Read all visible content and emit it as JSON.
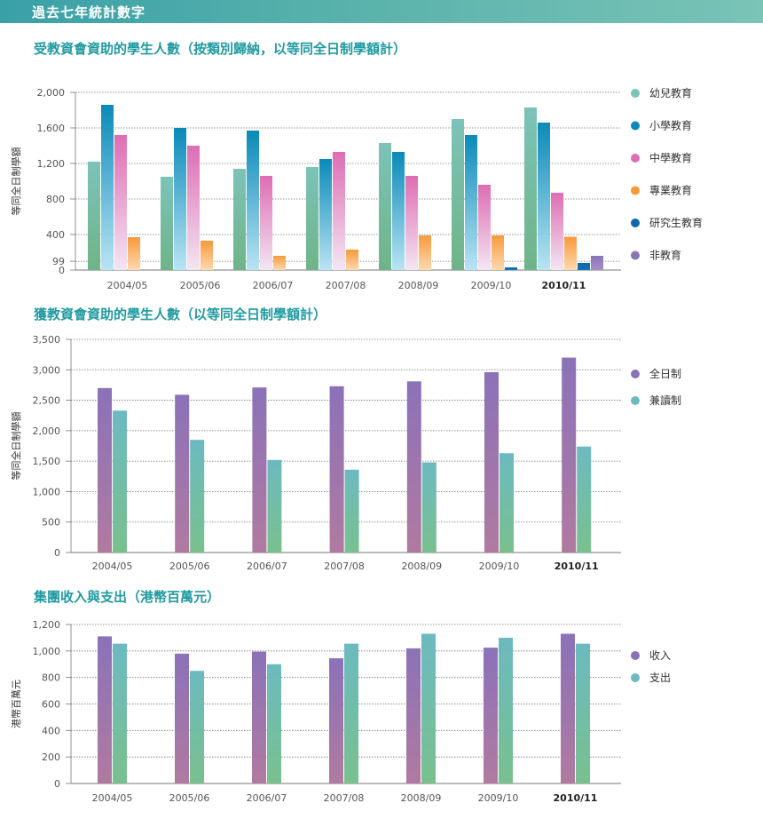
{
  "header": {
    "title": "過去七年統計數字"
  },
  "colors": {
    "幼兒教育": [
      "#7cc3b8",
      "#6fb488"
    ],
    "小學教育": [
      "#0a8ab8",
      "#b9e4f4"
    ],
    "中學教育": [
      "#de6db3",
      "#f3e6f2"
    ],
    "專業教育": [
      "#f59a3a",
      "#ffd9b0"
    ],
    "研究生教育": [
      "#0f67ad",
      "#1272b8"
    ],
    "非教育": [
      "#8a74b6",
      "#a98fc8"
    ],
    "全日制": [
      "#8b72b8",
      "#b07aa0"
    ],
    "兼讀制": [
      "#6cbac0",
      "#79c08e"
    ],
    "收入": [
      "#8b72b8",
      "#b07aa0"
    ],
    "支出": [
      "#6cbac0",
      "#79c08e"
    ],
    "legend_dot_full": "#8c6cab",
    "legend_dot_part": "#6ebf9b"
  },
  "chart_data": [
    {
      "type": "bar",
      "title": "受教資會資助的學生人數（按類別歸納，以等同全日制學額計）",
      "ylabel": "等同全日制學額",
      "categories": [
        "2004/05",
        "2005/06",
        "2006/07",
        "2007/08",
        "2008/09",
        "2009/10",
        "2010/11"
      ],
      "highlight_category": "2010/11",
      "ylim": [
        0,
        2000
      ],
      "yticks": [
        0,
        99,
        400,
        800,
        1200,
        1600,
        2000
      ],
      "ytick_labels": [
        "0",
        "99",
        "400",
        "800",
        "1,200",
        "1,600",
        "2,000"
      ],
      "legend_position": "right",
      "series": [
        {
          "name": "幼兒教育",
          "values": [
            1220,
            1050,
            1140,
            1160,
            1430,
            1700,
            1830
          ]
        },
        {
          "name": "小學教育",
          "values": [
            1860,
            1600,
            1570,
            1250,
            1330,
            1520,
            1660
          ]
        },
        {
          "name": "中學教育",
          "values": [
            1520,
            1400,
            1060,
            1330,
            1060,
            960,
            870
          ]
        },
        {
          "name": "專業教育",
          "values": [
            370,
            330,
            160,
            230,
            390,
            390,
            375
          ]
        },
        {
          "name": "研究生教育",
          "values": [
            0,
            0,
            0,
            0,
            0,
            30,
            80
          ]
        },
        {
          "name": "非教育",
          "values": [
            0,
            0,
            0,
            0,
            0,
            0,
            160
          ]
        }
      ]
    },
    {
      "type": "bar",
      "title": "獲教資會資助的學生人數（以等同全日制學額計）",
      "ylabel": "等同全日制學額",
      "categories": [
        "2004/05",
        "2005/06",
        "2006/07",
        "2007/08",
        "2008/09",
        "2009/10",
        "2010/11"
      ],
      "highlight_category": "2010/11",
      "ylim": [
        0,
        3500
      ],
      "yticks": [
        0,
        500,
        1000,
        1500,
        2000,
        2500,
        3000,
        3500
      ],
      "ytick_labels": [
        "0",
        "500",
        "1,000",
        "1,500",
        "2,000",
        "2,500",
        "3,000",
        "3,500"
      ],
      "legend_position": "right",
      "series": [
        {
          "name": "全日制",
          "values": [
            2700,
            2590,
            2710,
            2730,
            2810,
            2960,
            3200
          ]
        },
        {
          "name": "兼讀制",
          "values": [
            2330,
            1850,
            1520,
            1360,
            1480,
            1630,
            1740
          ]
        }
      ]
    },
    {
      "type": "bar",
      "title": "集團收入與支出（港幣百萬元）",
      "ylabel": "港幣百萬元",
      "categories": [
        "2004/05",
        "2005/06",
        "2006/07",
        "2007/08",
        "2008/09",
        "2009/10",
        "2010/11"
      ],
      "highlight_category": "2010/11",
      "ylim": [
        0,
        1200
      ],
      "yticks": [
        0,
        200,
        400,
        600,
        800,
        1000,
        1200
      ],
      "ytick_labels": [
        "0",
        "200",
        "400",
        "600",
        "800",
        "1,000",
        "1,200"
      ],
      "legend_position": "right",
      "series": [
        {
          "name": "收入",
          "values": [
            1110,
            980,
            995,
            945,
            1020,
            1025,
            1130
          ]
        },
        {
          "name": "支出",
          "values": [
            1055,
            850,
            900,
            1055,
            1130,
            1100,
            1055
          ]
        }
      ]
    }
  ]
}
